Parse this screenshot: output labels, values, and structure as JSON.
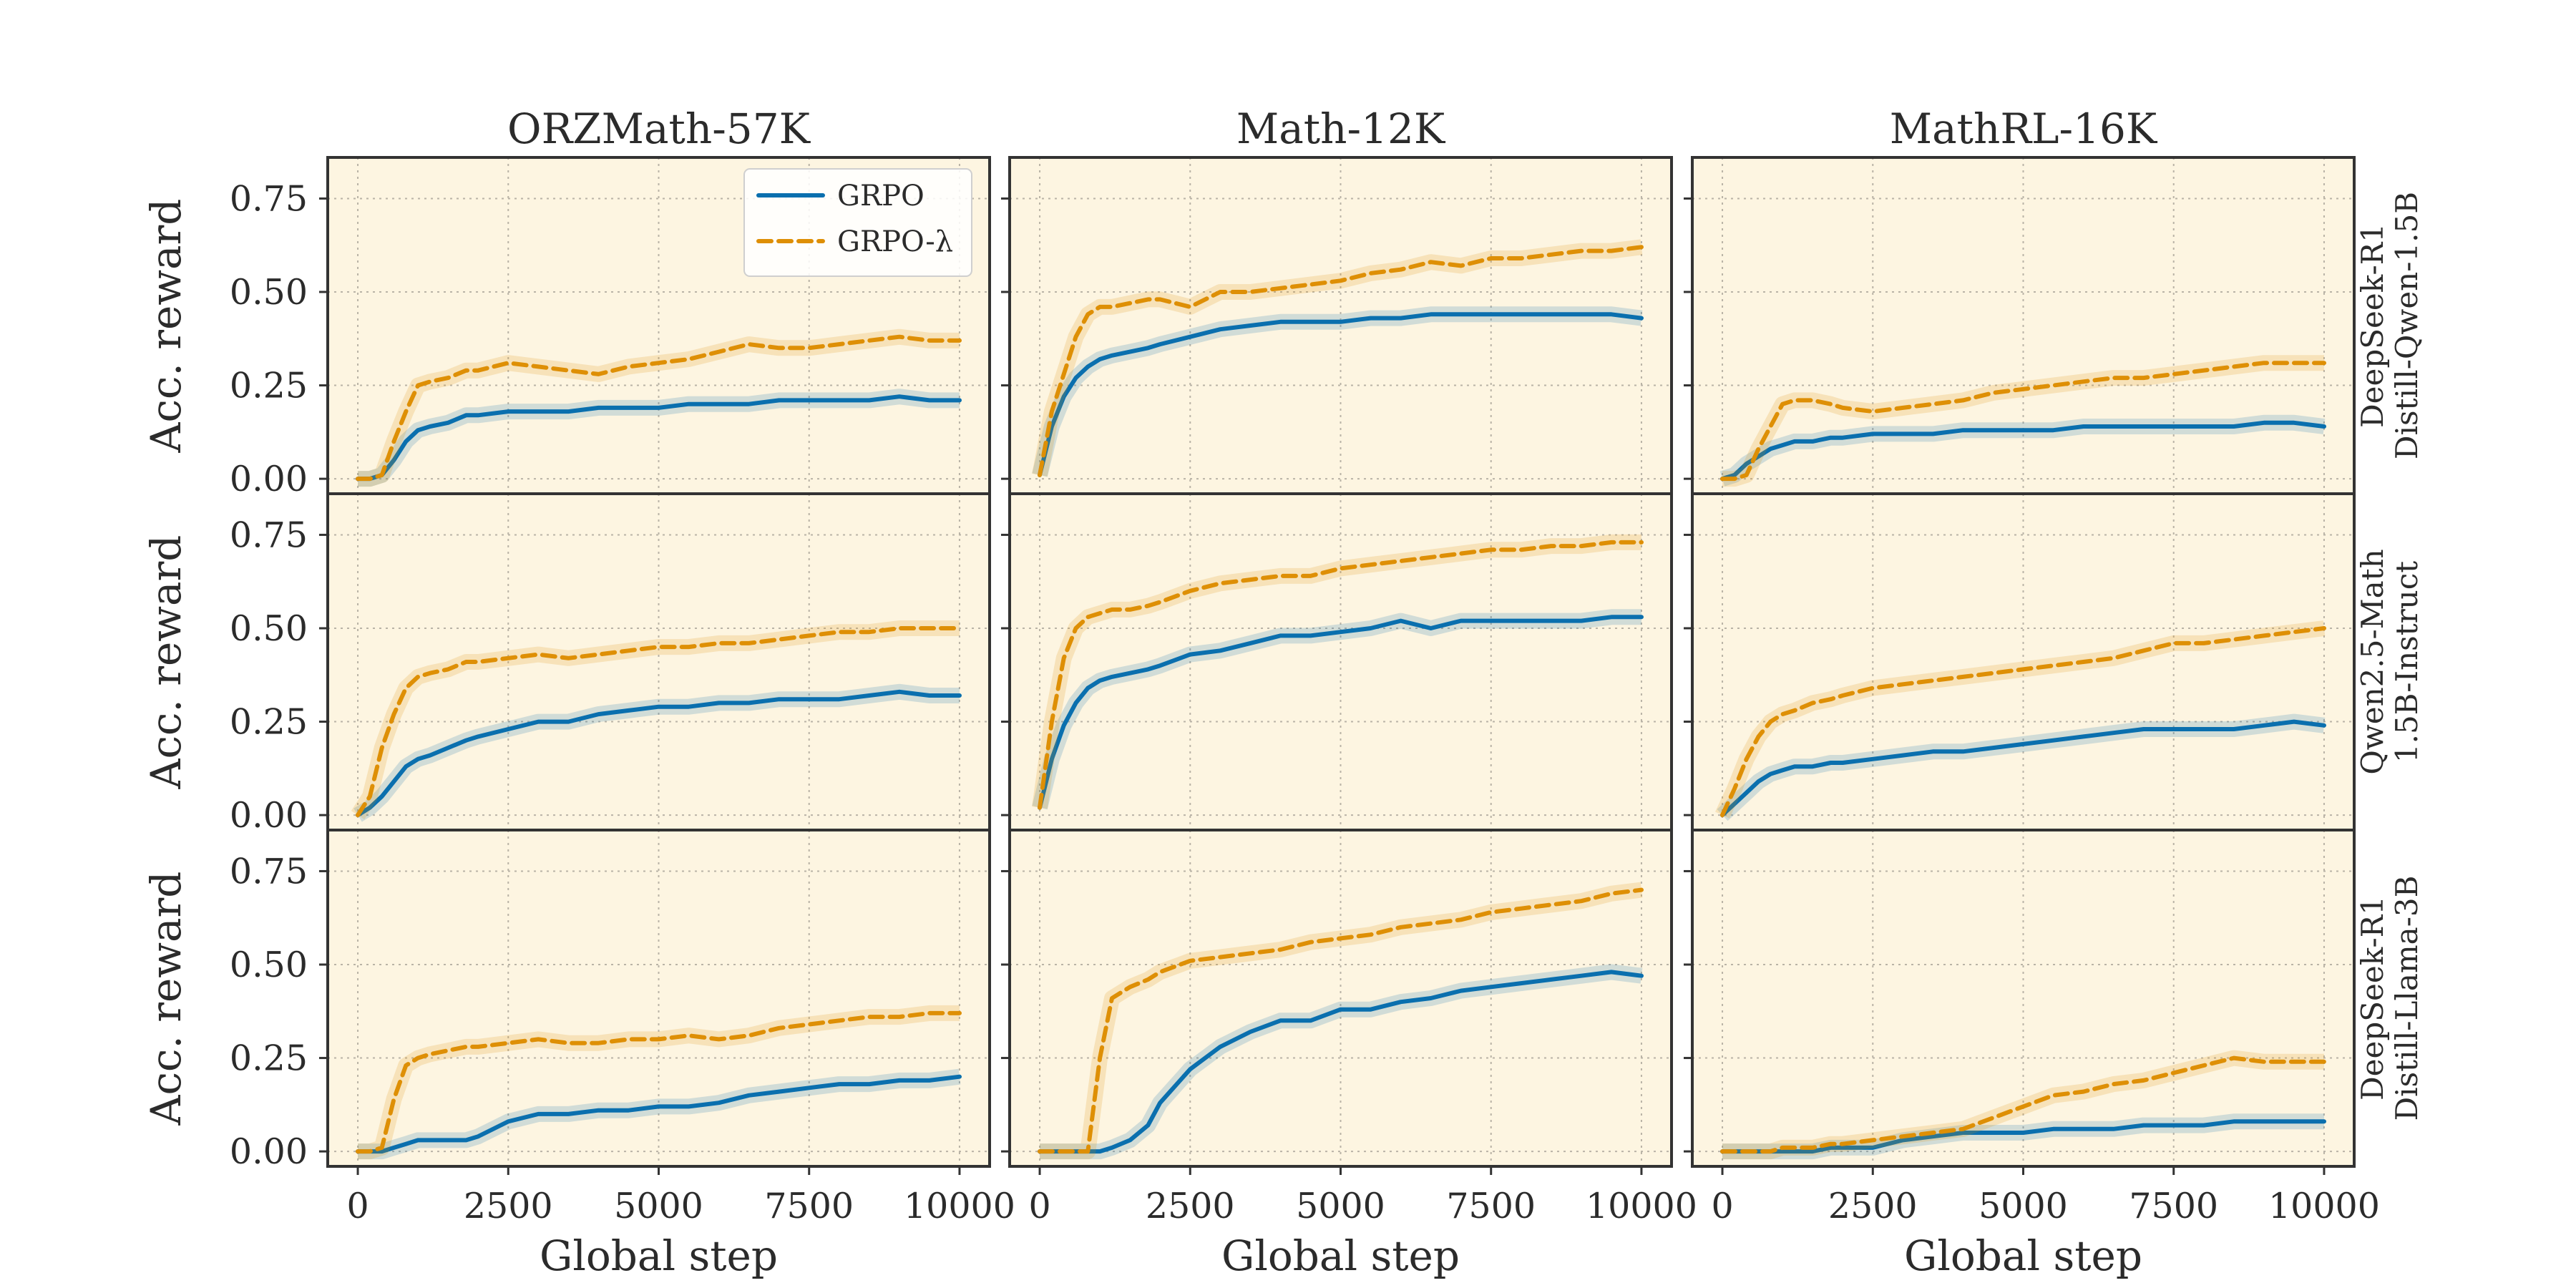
{
  "chart_data": {
    "type": "line",
    "column_titles": [
      "ORZMath-57K",
      "Math-12K",
      "MathRL-16K"
    ],
    "row_labels": [
      [
        "DeepSeek-R1",
        "Distill-Qwen-1.5B"
      ],
      [
        "Qwen2.5-Math",
        "1.5B-Instruct"
      ],
      [
        "DeepSeek-R1",
        "Distill-Llama-3B"
      ]
    ],
    "ylabel": "Acc. reward",
    "xlabel": "Global step",
    "xlim": [
      -500,
      10500
    ],
    "ylim": [
      -0.04,
      0.86
    ],
    "xticks": [
      0,
      2500,
      5000,
      7500,
      10000
    ],
    "xtick_labels": [
      [
        "0",
        "2500",
        "5000",
        "7500",
        "10000"
      ],
      [
        "0",
        "2500",
        "5000",
        "7500",
        "10000"
      ],
      [
        "0",
        "2500",
        "5000",
        "7500",
        "10000"
      ]
    ],
    "yticks": [
      0.0,
      0.25,
      0.5,
      0.75
    ],
    "ytick_labels": [
      "0.00",
      "0.25",
      "0.50",
      "0.75"
    ],
    "legend": [
      "GRPO",
      "GRPO-λ"
    ],
    "series_colors": {
      "GRPO": "#0a6fae",
      "GRPO-λ": "#de8f05"
    },
    "background_color": "#fdf5e1",
    "grid": true,
    "x": [
      0,
      200,
      400,
      600,
      800,
      1000,
      1200,
      1500,
      1800,
      2000,
      2500,
      3000,
      3500,
      4000,
      4500,
      5000,
      5500,
      6000,
      6500,
      7000,
      7500,
      8000,
      8500,
      9000,
      9500,
      10000
    ],
    "panels": [
      {
        "row": 0,
        "col": 0,
        "series": [
          {
            "name": "GRPO",
            "values": [
              0.0,
              0.0,
              0.01,
              0.05,
              0.1,
              0.13,
              0.14,
              0.15,
              0.17,
              0.17,
              0.18,
              0.18,
              0.18,
              0.19,
              0.19,
              0.19,
              0.2,
              0.2,
              0.2,
              0.21,
              0.21,
              0.21,
              0.21,
              0.22,
              0.21,
              0.21
            ]
          },
          {
            "name": "GRPO-λ",
            "values": [
              0.0,
              0.0,
              0.01,
              0.1,
              0.18,
              0.25,
              0.26,
              0.27,
              0.29,
              0.29,
              0.31,
              0.3,
              0.29,
              0.28,
              0.3,
              0.31,
              0.32,
              0.34,
              0.36,
              0.35,
              0.35,
              0.36,
              0.37,
              0.38,
              0.37,
              0.37
            ]
          }
        ]
      },
      {
        "row": 0,
        "col": 1,
        "series": [
          {
            "name": "GRPO",
            "values": [
              0.01,
              0.14,
              0.22,
              0.27,
              0.3,
              0.32,
              0.33,
              0.34,
              0.35,
              0.36,
              0.38,
              0.4,
              0.41,
              0.42,
              0.42,
              0.42,
              0.43,
              0.43,
              0.44,
              0.44,
              0.44,
              0.44,
              0.44,
              0.44,
              0.44,
              0.43
            ]
          },
          {
            "name": "GRPO-λ",
            "values": [
              0.01,
              0.18,
              0.28,
              0.38,
              0.44,
              0.46,
              0.46,
              0.47,
              0.48,
              0.48,
              0.46,
              0.5,
              0.5,
              0.51,
              0.52,
              0.53,
              0.55,
              0.56,
              0.58,
              0.57,
              0.59,
              0.59,
              0.6,
              0.61,
              0.61,
              0.62
            ]
          }
        ]
      },
      {
        "row": 0,
        "col": 2,
        "series": [
          {
            "name": "GRPO",
            "values": [
              0.0,
              0.01,
              0.04,
              0.06,
              0.08,
              0.09,
              0.1,
              0.1,
              0.11,
              0.11,
              0.12,
              0.12,
              0.12,
              0.13,
              0.13,
              0.13,
              0.13,
              0.14,
              0.14,
              0.14,
              0.14,
              0.14,
              0.14,
              0.15,
              0.15,
              0.14
            ]
          },
          {
            "name": "GRPO-λ",
            "values": [
              0.0,
              0.0,
              0.01,
              0.08,
              0.14,
              0.2,
              0.21,
              0.21,
              0.2,
              0.19,
              0.18,
              0.19,
              0.2,
              0.21,
              0.23,
              0.24,
              0.25,
              0.26,
              0.27,
              0.27,
              0.28,
              0.29,
              0.3,
              0.31,
              0.31,
              0.31
            ]
          }
        ]
      },
      {
        "row": 1,
        "col": 0,
        "series": [
          {
            "name": "GRPO",
            "values": [
              0.0,
              0.02,
              0.05,
              0.09,
              0.13,
              0.15,
              0.16,
              0.18,
              0.2,
              0.21,
              0.23,
              0.25,
              0.25,
              0.27,
              0.28,
              0.29,
              0.29,
              0.3,
              0.3,
              0.31,
              0.31,
              0.31,
              0.32,
              0.33,
              0.32,
              0.32
            ]
          },
          {
            "name": "GRPO-λ",
            "values": [
              0.0,
              0.05,
              0.18,
              0.27,
              0.34,
              0.37,
              0.38,
              0.39,
              0.41,
              0.41,
              0.42,
              0.43,
              0.42,
              0.43,
              0.44,
              0.45,
              0.45,
              0.46,
              0.46,
              0.47,
              0.48,
              0.49,
              0.49,
              0.5,
              0.5,
              0.5
            ]
          }
        ]
      },
      {
        "row": 1,
        "col": 1,
        "series": [
          {
            "name": "GRPO",
            "values": [
              0.02,
              0.15,
              0.24,
              0.3,
              0.34,
              0.36,
              0.37,
              0.38,
              0.39,
              0.4,
              0.43,
              0.44,
              0.46,
              0.48,
              0.48,
              0.49,
              0.5,
              0.52,
              0.5,
              0.52,
              0.52,
              0.52,
              0.52,
              0.52,
              0.53,
              0.53
            ]
          },
          {
            "name": "GRPO-λ",
            "values": [
              0.02,
              0.25,
              0.42,
              0.5,
              0.53,
              0.54,
              0.55,
              0.55,
              0.56,
              0.57,
              0.6,
              0.62,
              0.63,
              0.64,
              0.64,
              0.66,
              0.67,
              0.68,
              0.69,
              0.7,
              0.71,
              0.71,
              0.72,
              0.72,
              0.73,
              0.73
            ]
          }
        ]
      },
      {
        "row": 1,
        "col": 2,
        "series": [
          {
            "name": "GRPO",
            "values": [
              0.0,
              0.03,
              0.06,
              0.09,
              0.11,
              0.12,
              0.13,
              0.13,
              0.14,
              0.14,
              0.15,
              0.16,
              0.17,
              0.17,
              0.18,
              0.19,
              0.2,
              0.21,
              0.22,
              0.23,
              0.23,
              0.23,
              0.23,
              0.24,
              0.25,
              0.24
            ]
          },
          {
            "name": "GRPO-λ",
            "values": [
              0.0,
              0.07,
              0.15,
              0.21,
              0.25,
              0.27,
              0.28,
              0.3,
              0.31,
              0.32,
              0.34,
              0.35,
              0.36,
              0.37,
              0.38,
              0.39,
              0.4,
              0.41,
              0.42,
              0.44,
              0.46,
              0.46,
              0.47,
              0.48,
              0.49,
              0.5
            ]
          }
        ]
      },
      {
        "row": 2,
        "col": 0,
        "series": [
          {
            "name": "GRPO",
            "values": [
              0.0,
              0.0,
              0.0,
              0.01,
              0.02,
              0.03,
              0.03,
              0.03,
              0.03,
              0.04,
              0.08,
              0.1,
              0.1,
              0.11,
              0.11,
              0.12,
              0.12,
              0.13,
              0.15,
              0.16,
              0.17,
              0.18,
              0.18,
              0.19,
              0.19,
              0.2
            ]
          },
          {
            "name": "GRPO-λ",
            "values": [
              0.0,
              0.0,
              0.01,
              0.14,
              0.23,
              0.25,
              0.26,
              0.27,
              0.28,
              0.28,
              0.29,
              0.3,
              0.29,
              0.29,
              0.3,
              0.3,
              0.31,
              0.3,
              0.31,
              0.33,
              0.34,
              0.35,
              0.36,
              0.36,
              0.37,
              0.37
            ]
          }
        ]
      },
      {
        "row": 2,
        "col": 1,
        "series": [
          {
            "name": "GRPO",
            "values": [
              0.0,
              0.0,
              0.0,
              0.0,
              0.0,
              0.0,
              0.01,
              0.03,
              0.07,
              0.13,
              0.22,
              0.28,
              0.32,
              0.35,
              0.35,
              0.38,
              0.38,
              0.4,
              0.41,
              0.43,
              0.44,
              0.45,
              0.46,
              0.47,
              0.48,
              0.47
            ]
          },
          {
            "name": "GRPO-λ",
            "values": [
              0.0,
              0.0,
              0.0,
              0.0,
              0.0,
              0.25,
              0.41,
              0.44,
              0.46,
              0.48,
              0.51,
              0.52,
              0.53,
              0.54,
              0.56,
              0.57,
              0.58,
              0.6,
              0.61,
              0.62,
              0.64,
              0.65,
              0.66,
              0.67,
              0.69,
              0.7
            ]
          }
        ]
      },
      {
        "row": 2,
        "col": 2,
        "series": [
          {
            "name": "GRPO",
            "values": [
              0.0,
              0.0,
              0.0,
              0.0,
              0.0,
              0.0,
              0.0,
              0.0,
              0.01,
              0.01,
              0.01,
              0.03,
              0.04,
              0.05,
              0.05,
              0.05,
              0.06,
              0.06,
              0.06,
              0.07,
              0.07,
              0.07,
              0.08,
              0.08,
              0.08,
              0.08
            ]
          },
          {
            "name": "GRPO-λ",
            "values": [
              0.0,
              0.0,
              0.0,
              0.0,
              0.0,
              0.01,
              0.01,
              0.01,
              0.02,
              0.02,
              0.03,
              0.04,
              0.05,
              0.06,
              0.09,
              0.12,
              0.15,
              0.16,
              0.18,
              0.19,
              0.21,
              0.23,
              0.25,
              0.24,
              0.24,
              0.24
            ]
          }
        ]
      }
    ]
  }
}
